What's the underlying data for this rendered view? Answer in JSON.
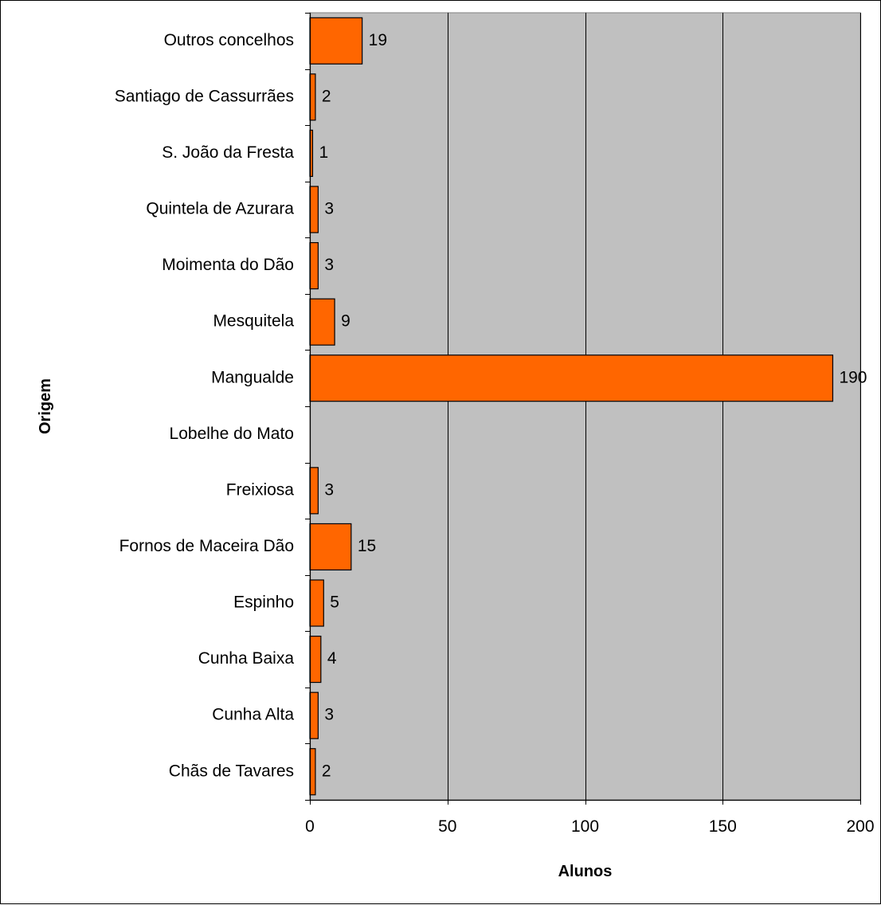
{
  "chart_data": {
    "type": "bar",
    "orientation": "horizontal",
    "categories": [
      "Outros concelhos",
      "Santiago de Cassurrães",
      "S. João da Fresta",
      "Quintela de Azurara",
      "Moimenta do Dão",
      "Mesquitela",
      "Mangualde",
      "Lobelhe do Mato",
      "Freixiosa",
      "Fornos de Maceira Dão",
      "Espinho",
      "Cunha Baixa",
      "Cunha Alta",
      "Chãs de Tavares"
    ],
    "values": [
      19,
      2,
      1,
      3,
      3,
      9,
      190,
      null,
      3,
      15,
      5,
      4,
      3,
      2
    ],
    "value_labels": [
      "19",
      "2",
      "1",
      "3",
      "3",
      "9",
      "190",
      "",
      "3",
      "15",
      "5",
      "4",
      "3",
      "2"
    ],
    "xlabel": "Alunos",
    "ylabel": "Origem",
    "xlim": [
      0,
      200
    ],
    "xticks": [
      0,
      50,
      100,
      150,
      200
    ],
    "xtick_labels": [
      "0",
      "50",
      "100",
      "150",
      "200"
    ],
    "grid": "vertical",
    "legend": "none",
    "colors": {
      "bar_fill": "#FF6600",
      "bar_stroke": "#000000",
      "plot_background": "#C0C0C0",
      "gridline": "#000000"
    }
  }
}
